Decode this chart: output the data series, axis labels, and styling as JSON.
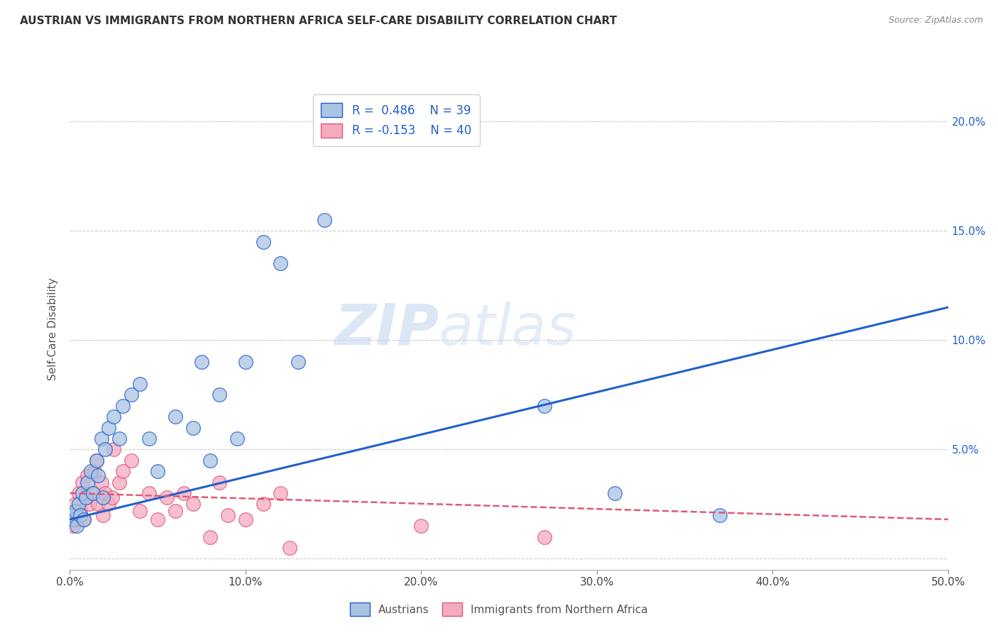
{
  "title": "AUSTRIAN VS IMMIGRANTS FROM NORTHERN AFRICA SELF-CARE DISABILITY CORRELATION CHART",
  "source": "Source: ZipAtlas.com",
  "ylabel": "Self-Care Disability",
  "xlim": [
    0.0,
    0.5
  ],
  "ylim": [
    -0.005,
    0.215
  ],
  "xticks": [
    0.0,
    0.1,
    0.2,
    0.3,
    0.4,
    0.5
  ],
  "yticks_right": [
    0.0,
    0.05,
    0.1,
    0.15,
    0.2
  ],
  "ytick_labels_right": [
    "",
    "5.0%",
    "10.0%",
    "15.0%",
    "20.0%"
  ],
  "xtick_labels": [
    "0.0%",
    "10.0%",
    "20.0%",
    "30.0%",
    "40.0%",
    "50.0%"
  ],
  "austrians_color": "#aac4e2",
  "immigrants_color": "#f5aabf",
  "line_austrians_color": "#2060cc",
  "line_immigrants_color": "#e05878",
  "watermark_zip": "ZIP",
  "watermark_atlas": "atlas",
  "background_color": "#ffffff",
  "grid_color": "#cccccc",
  "austrians_x": [
    0.001,
    0.002,
    0.003,
    0.004,
    0.005,
    0.006,
    0.007,
    0.008,
    0.009,
    0.01,
    0.012,
    0.013,
    0.015,
    0.016,
    0.018,
    0.019,
    0.02,
    0.022,
    0.025,
    0.028,
    0.03,
    0.035,
    0.04,
    0.045,
    0.05,
    0.06,
    0.07,
    0.075,
    0.08,
    0.085,
    0.095,
    0.1,
    0.11,
    0.12,
    0.13,
    0.145,
    0.27,
    0.31,
    0.37
  ],
  "austrians_y": [
    0.02,
    0.018,
    0.022,
    0.015,
    0.025,
    0.02,
    0.03,
    0.018,
    0.028,
    0.035,
    0.04,
    0.03,
    0.045,
    0.038,
    0.055,
    0.028,
    0.05,
    0.06,
    0.065,
    0.055,
    0.07,
    0.075,
    0.08,
    0.055,
    0.04,
    0.065,
    0.06,
    0.09,
    0.045,
    0.075,
    0.055,
    0.09,
    0.145,
    0.135,
    0.09,
    0.155,
    0.07,
    0.03,
    0.02
  ],
  "immigrants_x": [
    0.001,
    0.002,
    0.003,
    0.004,
    0.005,
    0.006,
    0.007,
    0.008,
    0.009,
    0.01,
    0.011,
    0.012,
    0.014,
    0.015,
    0.016,
    0.018,
    0.019,
    0.02,
    0.022,
    0.024,
    0.025,
    0.028,
    0.03,
    0.035,
    0.04,
    0.045,
    0.05,
    0.055,
    0.06,
    0.065,
    0.07,
    0.08,
    0.085,
    0.09,
    0.1,
    0.11,
    0.12,
    0.125,
    0.2,
    0.27
  ],
  "immigrants_y": [
    0.02,
    0.015,
    0.025,
    0.018,
    0.03,
    0.022,
    0.035,
    0.018,
    0.028,
    0.038,
    0.025,
    0.03,
    0.04,
    0.045,
    0.025,
    0.035,
    0.02,
    0.03,
    0.025,
    0.028,
    0.05,
    0.035,
    0.04,
    0.045,
    0.022,
    0.03,
    0.018,
    0.028,
    0.022,
    0.03,
    0.025,
    0.01,
    0.035,
    0.02,
    0.018,
    0.025,
    0.03,
    0.005,
    0.015,
    0.01
  ],
  "blue_line_x": [
    0.0,
    0.5
  ],
  "blue_line_y": [
    0.018,
    0.115
  ],
  "pink_line_x": [
    0.0,
    0.5
  ],
  "pink_line_y": [
    0.03,
    0.018
  ]
}
